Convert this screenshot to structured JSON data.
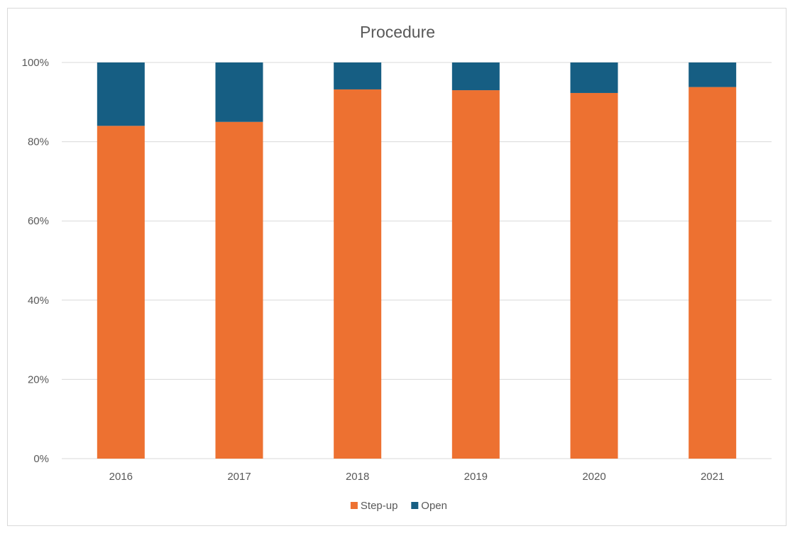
{
  "chart_data": {
    "type": "bar",
    "stacked": true,
    "percent_stacked": true,
    "title": "Procedure",
    "xlabel": "",
    "ylabel": "",
    "categories": [
      "2016",
      "2017",
      "2018",
      "2019",
      "2020",
      "2021"
    ],
    "series": [
      {
        "name": "Step-up",
        "color": "#ED7131",
        "values": [
          84,
          85,
          93.2,
          93,
          92.3,
          93.8
        ]
      },
      {
        "name": "Open",
        "color": "#165E83",
        "values": [
          16,
          15,
          6.8,
          7,
          7.7,
          6.2
        ]
      }
    ],
    "yticks": [
      "0%",
      "20%",
      "40%",
      "60%",
      "80%",
      "100%"
    ],
    "ylim": [
      0,
      100
    ],
    "grid": true,
    "legend_position": "bottom"
  }
}
